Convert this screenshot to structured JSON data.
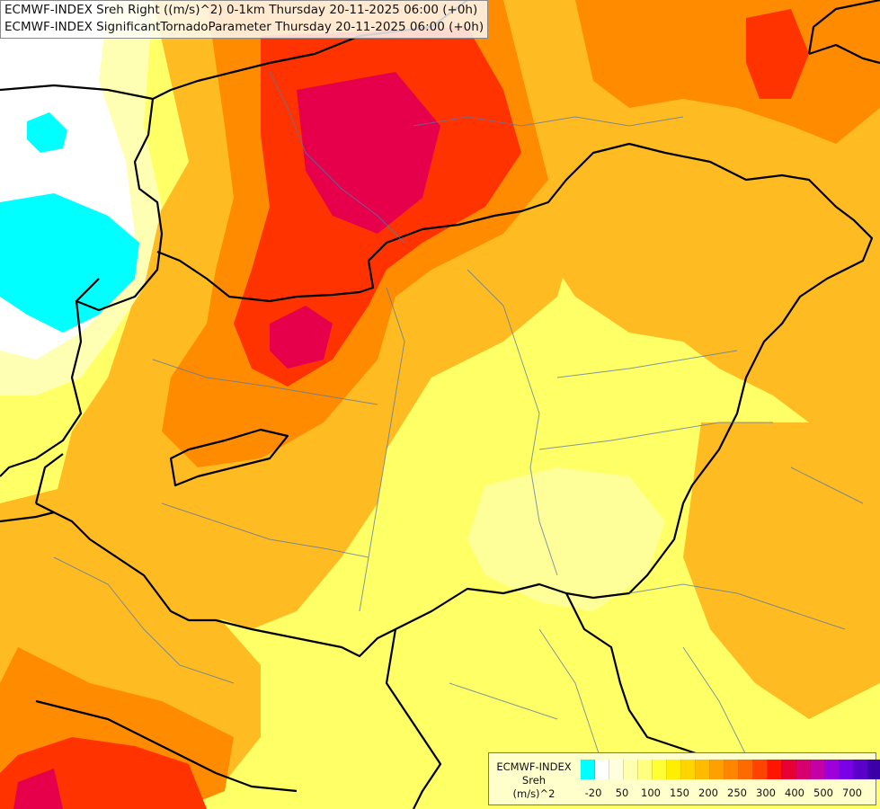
{
  "header": {
    "line1": "ECMWF-INDEX Sreh Right ((m/s)^2) 0-1km Thursday 20-11-2025 06:00 (+0h)",
    "line2": "ECMWF-INDEX SignificantTornadoParameter Thursday 20-11-2025 06:00 (+0h)"
  },
  "legend": {
    "title": [
      "ECMWF-INDEX",
      "Sreh",
      "(m/s)^2"
    ],
    "colors": [
      "#00ffff",
      "#ffffff",
      "#ffffe0",
      "#ffffb0",
      "#ffff80",
      "#ffff33",
      "#ffee00",
      "#ffd400",
      "#ffbb00",
      "#ffa000",
      "#ff8400",
      "#ff6a00",
      "#ff4400",
      "#ff1500",
      "#e60033",
      "#d6006e",
      "#c200a6",
      "#9d00d9",
      "#7a00e6",
      "#5a00c8",
      "#3c00a8",
      "#1e0090",
      "#000080"
    ],
    "ticks": [
      "-20",
      "50",
      "100",
      "150",
      "200",
      "250",
      "300",
      "400",
      "500",
      "700"
    ]
  }
}
